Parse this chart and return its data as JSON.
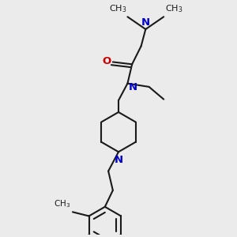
{
  "bg_color": "#ebebeb",
  "bond_color": "#1a1a1a",
  "N_color": "#0000cc",
  "O_color": "#cc0000",
  "line_width": 1.5,
  "font_size": 8.5,
  "fig_size": [
    3.0,
    3.0
  ],
  "dpi": 100,
  "xlim": [
    0,
    10
  ],
  "ylim": [
    0,
    10
  ]
}
